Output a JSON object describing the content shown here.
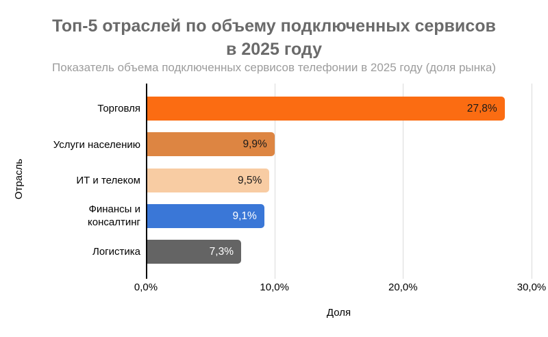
{
  "page": {
    "background_color": "#ffffff"
  },
  "header": {
    "title_line1": "Топ-5 отраслей по объему подключенных сервисов",
    "title_line2": "в 2025 году",
    "subtitle": "Показатель объема подключенных сервисов телефонии в 2025 году (доля рынка)",
    "title_color": "#6a6a6a",
    "subtitle_color": "#9c9c9c"
  },
  "chart_data": {
    "type": "bar",
    "orientation": "horizontal",
    "title": "Топ-5 отраслей по объему подключенных сервисов в 2025 году",
    "subtitle": "Показатель объема подключенных сервисов телефонии в 2025 году (доля рынка)",
    "categories": [
      "Торговля",
      "Услуги населению",
      "ИТ и телеком",
      "Финансы и консалтинг",
      "Логистика"
    ],
    "values": [
      27.8,
      9.9,
      9.5,
      9.1,
      7.3
    ],
    "value_labels": [
      "27,8%",
      "9,9%",
      "9,5%",
      "9,1%",
      "7,3%"
    ],
    "bar_colors": [
      "#FB6C12",
      "#DD8542",
      "#F8CCA3",
      "#3A77D7",
      "#646464"
    ],
    "value_label_colors": [
      "#1a1a1a",
      "#1a1a1a",
      "#1a1a1a",
      "#ffffff",
      "#ffffff"
    ],
    "xlabel": "Доля",
    "ylabel": "Отрасль",
    "xlim": [
      0,
      30
    ],
    "x_ticks": [
      "0,0%",
      "10,0%",
      "20,0%",
      "30,0%"
    ],
    "grid": "vertical-gridlines-at-10-20-30",
    "gridline_color": "#dadada",
    "axis_color": "#000000",
    "legend": "none"
  }
}
